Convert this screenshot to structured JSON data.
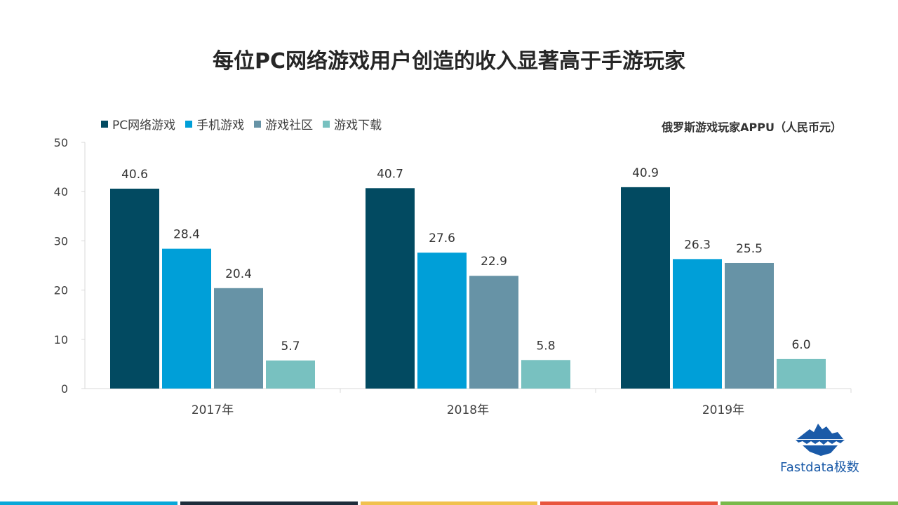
{
  "title": "每位PC网络游戏用户创造的收入显著高于手游玩家",
  "unit_label": "俄罗斯游戏玩家APPU（人民币元）",
  "logo": {
    "text": "Fastdata极数",
    "icon": "iceberg-logo-icon"
  },
  "colors": {
    "series": [
      "#024a61",
      "#009fd8",
      "#6793a6",
      "#78c1c0"
    ],
    "footer": [
      "#0aa7d8",
      "#1e2d3b",
      "#f1c14e",
      "#e8553e",
      "#79b94a"
    ],
    "logo": "#1a5aa8"
  },
  "chart_data": {
    "type": "bar",
    "title": "每位PC网络游戏用户创造的收入显著高于手游玩家",
    "categories": [
      "2017年",
      "2018年",
      "2019年"
    ],
    "series": [
      {
        "name": "PC网络游戏",
        "values": [
          40.6,
          40.7,
          40.9
        ]
      },
      {
        "name": "手机游戏",
        "values": [
          28.4,
          27.6,
          26.3
        ]
      },
      {
        "name": "游戏社区",
        "values": [
          20.4,
          22.9,
          25.5
        ]
      },
      {
        "name": "游戏下载",
        "values": [
          5.7,
          5.8,
          6.0
        ]
      }
    ],
    "ylim": [
      0,
      50
    ],
    "yticks": [
      "0",
      "10",
      "20",
      "30",
      "40",
      "50"
    ],
    "grid": false,
    "legend_position": "top-left",
    "data_labels": [
      [
        "40.6",
        "40.7",
        "40.9"
      ],
      [
        "28.4",
        "27.6",
        "26.3"
      ],
      [
        "20.4",
        "22.9",
        "25.5"
      ],
      [
        "5.7",
        "5.8",
        "6.0"
      ]
    ]
  }
}
